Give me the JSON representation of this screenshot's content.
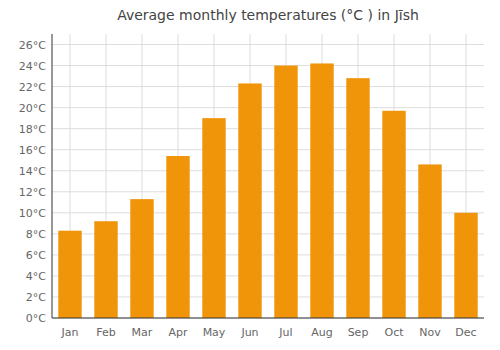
{
  "chart_data": {
    "type": "bar",
    "title": "Average monthly temperatures (°C ) in Jīsh",
    "categories": [
      "Jan",
      "Feb",
      "Mar",
      "Apr",
      "May",
      "Jun",
      "Jul",
      "Aug",
      "Sep",
      "Oct",
      "Nov",
      "Dec"
    ],
    "values": [
      8.3,
      9.2,
      11.3,
      15.4,
      19.0,
      22.3,
      24.0,
      24.2,
      22.8,
      19.7,
      14.6,
      10.0
    ],
    "color": "#F0940A",
    "ylim": [
      0,
      27
    ],
    "yticks": [
      {
        "value": 0,
        "label": "0°C"
      },
      {
        "value": 2,
        "label": "2°C"
      },
      {
        "value": 4,
        "label": "4°C"
      },
      {
        "value": 6,
        "label": "6°C"
      },
      {
        "value": 8,
        "label": "8°C"
      },
      {
        "value": 10,
        "label": "10°C"
      },
      {
        "value": 12,
        "label": "12°C"
      },
      {
        "value": 14,
        "label": "14°C"
      },
      {
        "value": 16,
        "label": "16°C"
      },
      {
        "value": 18,
        "label": "18°C"
      },
      {
        "value": 20,
        "label": "20°C"
      },
      {
        "value": 22,
        "label": "22°C"
      },
      {
        "value": 24,
        "label": "24°C"
      },
      {
        "value": 26,
        "label": "26°C"
      }
    ],
    "grid": true
  }
}
